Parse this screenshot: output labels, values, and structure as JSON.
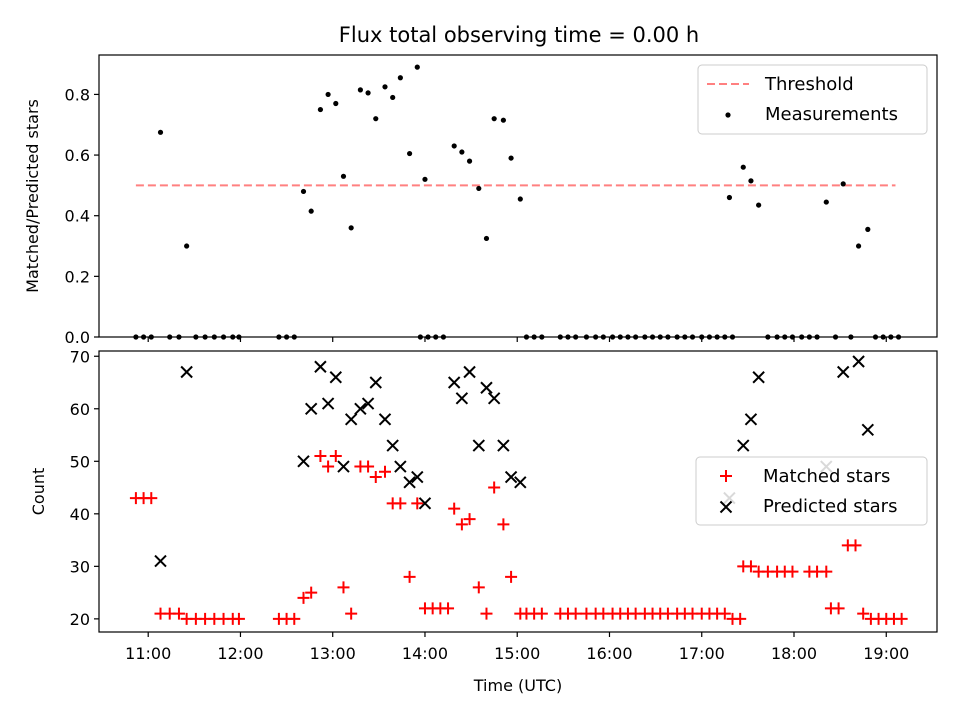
{
  "title": "Flux total observing time = 0.00 h",
  "colors": {
    "threshold": "#ff8080",
    "measurements": "#000000",
    "matched": "#ff0000",
    "predicted": "#000000"
  },
  "chart_data": [
    {
      "type": "scatter",
      "ylabel": "Matched/Predicted stars",
      "ylim": [
        0,
        0.93
      ],
      "yticks": [
        "0.0",
        "0.2",
        "0.4",
        "0.6",
        "0.8"
      ],
      "ytick_values": [
        0,
        0.2,
        0.4,
        0.6,
        0.8
      ],
      "grid": false,
      "legend": {
        "placement": "top-right",
        "entries": [
          "Threshold",
          "Measurements"
        ]
      },
      "threshold": {
        "name": "Threshold",
        "x": [
          "10:52",
          "19:06"
        ],
        "y": 0.5
      },
      "series": [
        {
          "name": "Measurements",
          "points": [
            [
              "10:52",
              0
            ],
            [
              "10:57",
              0
            ],
            [
              "11:02",
              0
            ],
            [
              "11:08",
              0.675
            ],
            [
              "11:14",
              0
            ],
            [
              "11:20",
              0
            ],
            [
              "11:25",
              0.3
            ],
            [
              "11:31",
              0
            ],
            [
              "11:37",
              0
            ],
            [
              "11:43",
              0
            ],
            [
              "11:49",
              0
            ],
            [
              "11:55",
              0
            ],
            [
              "11:59",
              0
            ],
            [
              "12:25",
              0
            ],
            [
              "12:30",
              0
            ],
            [
              "12:35",
              0
            ],
            [
              "12:41",
              0.48
            ],
            [
              "12:46",
              0.415
            ],
            [
              "12:52",
              0.75
            ],
            [
              "12:57",
              0.8
            ],
            [
              "13:02",
              0.77
            ],
            [
              "13:07",
              0.53
            ],
            [
              "13:12",
              0.36
            ],
            [
              "13:18",
              0.815
            ],
            [
              "13:23",
              0.805
            ],
            [
              "13:28",
              0.72
            ],
            [
              "13:34",
              0.825
            ],
            [
              "13:39",
              0.79
            ],
            [
              "13:44",
              0.855
            ],
            [
              "13:50",
              0.605
            ],
            [
              "13:55",
              0.89
            ],
            [
              "14:00",
              0.52
            ],
            [
              "13:57",
              0
            ],
            [
              "14:02",
              0
            ],
            [
              "14:07",
              0
            ],
            [
              "14:12",
              0
            ],
            [
              "14:19",
              0.63
            ],
            [
              "14:24",
              0.61
            ],
            [
              "14:29",
              0.58
            ],
            [
              "14:35",
              0.49
            ],
            [
              "14:40",
              0.325
            ],
            [
              "14:45",
              0.72
            ],
            [
              "14:51",
              0.715
            ],
            [
              "14:56",
              0.59
            ],
            [
              "15:02",
              0.455
            ],
            [
              "15:06",
              0
            ],
            [
              "15:11",
              0
            ],
            [
              "15:16",
              0
            ],
            [
              "15:28",
              0
            ],
            [
              "15:33",
              0
            ],
            [
              "15:38",
              0
            ],
            [
              "15:45",
              0
            ],
            [
              "15:51",
              0
            ],
            [
              "15:56",
              0
            ],
            [
              "16:02",
              0
            ],
            [
              "16:07",
              0
            ],
            [
              "16:12",
              0
            ],
            [
              "16:17",
              0
            ],
            [
              "16:23",
              0
            ],
            [
              "16:28",
              0
            ],
            [
              "16:33",
              0
            ],
            [
              "16:38",
              0
            ],
            [
              "16:44",
              0
            ],
            [
              "16:49",
              0
            ],
            [
              "16:54",
              0
            ],
            [
              "17:00",
              0
            ],
            [
              "17:05",
              0
            ],
            [
              "17:10",
              0
            ],
            [
              "17:15",
              0
            ],
            [
              "17:20",
              0
            ],
            [
              "17:18",
              0.46
            ],
            [
              "17:27",
              0.56
            ],
            [
              "17:32",
              0.515
            ],
            [
              "17:37",
              0.435
            ],
            [
              "17:43",
              0
            ],
            [
              "17:49",
              0
            ],
            [
              "17:54",
              0
            ],
            [
              "17:59",
              0
            ],
            [
              "18:05",
              0
            ],
            [
              "18:10",
              0
            ],
            [
              "18:15",
              0
            ],
            [
              "18:21",
              0.445
            ],
            [
              "18:27",
              0
            ],
            [
              "18:32",
              0.505
            ],
            [
              "18:37",
              0
            ],
            [
              "18:42",
              0.3
            ],
            [
              "18:48",
              0.355
            ],
            [
              "18:53",
              0
            ],
            [
              "18:58",
              0
            ],
            [
              "19:03",
              0
            ],
            [
              "19:08",
              0
            ]
          ]
        }
      ]
    },
    {
      "type": "scatter",
      "title": "",
      "xlabel": "Time (UTC)",
      "ylabel": "Count",
      "ylim": [
        17.5,
        71
      ],
      "yticks": [
        "20",
        "30",
        "40",
        "50",
        "60",
        "70"
      ],
      "ytick_values": [
        20,
        30,
        40,
        50,
        60,
        70
      ],
      "xticks": [
        "11:00",
        "12:00",
        "13:00",
        "14:00",
        "15:00",
        "16:00",
        "17:00",
        "18:00",
        "19:00"
      ],
      "xlim": [
        "10:28",
        "19:33"
      ],
      "grid": false,
      "legend": {
        "placement": "center-right",
        "entries": [
          "Matched stars",
          "Predicted stars"
        ]
      },
      "series": [
        {
          "name": "Matched stars",
          "points": [
            [
              "10:52",
              43
            ],
            [
              "10:57",
              43
            ],
            [
              "11:02",
              43
            ],
            [
              "11:08",
              21
            ],
            [
              "11:14",
              21
            ],
            [
              "11:20",
              21
            ],
            [
              "11:25",
              20
            ],
            [
              "11:31",
              20
            ],
            [
              "11:37",
              20
            ],
            [
              "11:43",
              20
            ],
            [
              "11:49",
              20
            ],
            [
              "11:55",
              20
            ],
            [
              "11:59",
              20
            ],
            [
              "12:25",
              20
            ],
            [
              "12:30",
              20
            ],
            [
              "12:35",
              20
            ],
            [
              "12:41",
              24
            ],
            [
              "12:46",
              25
            ],
            [
              "12:52",
              51
            ],
            [
              "12:57",
              49
            ],
            [
              "13:02",
              51
            ],
            [
              "13:07",
              26
            ],
            [
              "13:12",
              21
            ],
            [
              "13:18",
              49
            ],
            [
              "13:23",
              49
            ],
            [
              "13:28",
              47
            ],
            [
              "13:34",
              48
            ],
            [
              "13:39",
              42
            ],
            [
              "13:44",
              42
            ],
            [
              "13:50",
              28
            ],
            [
              "13:55",
              42
            ],
            [
              "14:00",
              22
            ],
            [
              "14:05",
              22
            ],
            [
              "14:10",
              22
            ],
            [
              "14:15",
              22
            ],
            [
              "14:19",
              41
            ],
            [
              "14:24",
              38
            ],
            [
              "14:29",
              39
            ],
            [
              "14:35",
              26
            ],
            [
              "14:40",
              21
            ],
            [
              "14:45",
              45
            ],
            [
              "14:51",
              38
            ],
            [
              "14:56",
              28
            ],
            [
              "15:02",
              21
            ],
            [
              "15:06",
              21
            ],
            [
              "15:11",
              21
            ],
            [
              "15:16",
              21
            ],
            [
              "15:28",
              21
            ],
            [
              "15:33",
              21
            ],
            [
              "15:38",
              21
            ],
            [
              "15:45",
              21
            ],
            [
              "15:51",
              21
            ],
            [
              "15:56",
              21
            ],
            [
              "16:02",
              21
            ],
            [
              "16:07",
              21
            ],
            [
              "16:12",
              21
            ],
            [
              "16:17",
              21
            ],
            [
              "16:23",
              21
            ],
            [
              "16:28",
              21
            ],
            [
              "16:33",
              21
            ],
            [
              "16:38",
              21
            ],
            [
              "16:44",
              21
            ],
            [
              "16:49",
              21
            ],
            [
              "16:54",
              21
            ],
            [
              "17:00",
              21
            ],
            [
              "17:05",
              21
            ],
            [
              "17:10",
              21
            ],
            [
              "17:15",
              21
            ],
            [
              "17:20",
              20
            ],
            [
              "17:25",
              20
            ],
            [
              "17:27",
              30
            ],
            [
              "17:32",
              30
            ],
            [
              "17:37",
              29
            ],
            [
              "17:43",
              29
            ],
            [
              "17:49",
              29
            ],
            [
              "17:54",
              29
            ],
            [
              "17:59",
              29
            ],
            [
              "18:10",
              29
            ],
            [
              "18:15",
              29
            ],
            [
              "18:21",
              29
            ],
            [
              "18:24",
              22
            ],
            [
              "18:29",
              22
            ],
            [
              "18:35",
              34
            ],
            [
              "18:40",
              34
            ],
            [
              "18:45",
              21
            ],
            [
              "18:50",
              20
            ],
            [
              "18:55",
              20
            ],
            [
              "19:00",
              20
            ],
            [
              "19:05",
              20
            ],
            [
              "19:10",
              20
            ]
          ]
        },
        {
          "name": "Predicted stars",
          "points": [
            [
              "11:08",
              31
            ],
            [
              "11:25",
              67
            ],
            [
              "12:41",
              50
            ],
            [
              "12:46",
              60
            ],
            [
              "12:52",
              68
            ],
            [
              "12:57",
              61
            ],
            [
              "13:02",
              66
            ],
            [
              "13:07",
              49
            ],
            [
              "13:12",
              58
            ],
            [
              "13:18",
              60
            ],
            [
              "13:23",
              61
            ],
            [
              "13:28",
              65
            ],
            [
              "13:34",
              58
            ],
            [
              "13:39",
              53
            ],
            [
              "13:44",
              49
            ],
            [
              "13:50",
              46
            ],
            [
              "13:55",
              47
            ],
            [
              "14:00",
              42
            ],
            [
              "14:19",
              65
            ],
            [
              "14:24",
              62
            ],
            [
              "14:29",
              67
            ],
            [
              "14:35",
              53
            ],
            [
              "14:40",
              64
            ],
            [
              "14:45",
              62
            ],
            [
              "14:51",
              53
            ],
            [
              "14:56",
              47
            ],
            [
              "15:02",
              46
            ],
            [
              "17:18",
              43
            ],
            [
              "17:27",
              53
            ],
            [
              "17:32",
              58
            ],
            [
              "17:37",
              66
            ],
            [
              "18:21",
              49
            ],
            [
              "18:32",
              67
            ],
            [
              "18:42",
              69
            ],
            [
              "18:48",
              56
            ]
          ]
        }
      ]
    }
  ]
}
